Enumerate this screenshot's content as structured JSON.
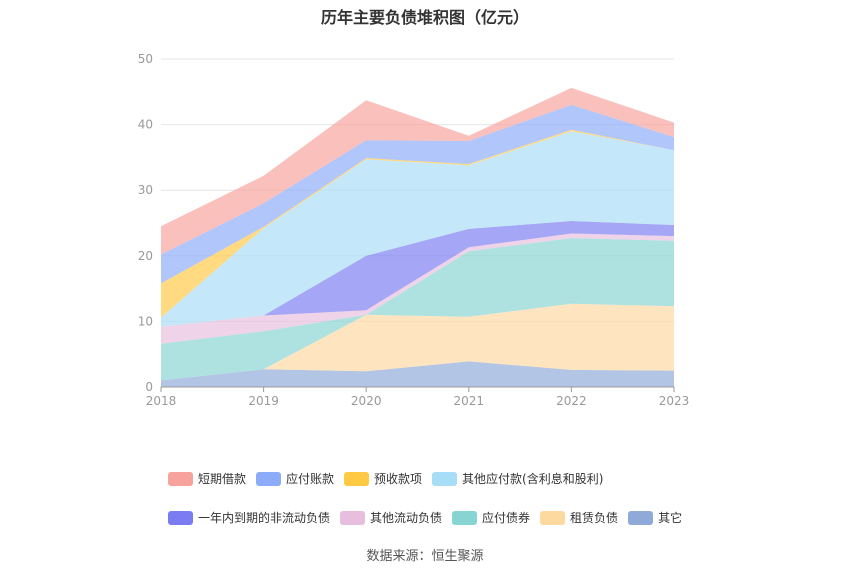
{
  "chart_data": {
    "type": "area",
    "stacked": true,
    "title": "历年主要负债堆积图（亿元）",
    "x": [
      "2018",
      "2019",
      "2020",
      "2021",
      "2022",
      "2023"
    ],
    "ylim": [
      0,
      50
    ],
    "yticks": [
      0,
      10,
      20,
      30,
      40,
      50
    ],
    "grid": true,
    "legend_position": "bottom",
    "series": [
      {
        "name": "其它",
        "color": "#8fa9d8",
        "values": [
          1.0,
          2.7,
          2.4,
          3.9,
          2.6,
          2.5
        ]
      },
      {
        "name": "租赁负债",
        "color": "#fdd9a0",
        "values": [
          0.0,
          0.0,
          8.6,
          6.8,
          10.1,
          9.8
        ]
      },
      {
        "name": "应付债券",
        "color": "#88d4d3",
        "values": [
          5.6,
          5.8,
          0.0,
          10.0,
          10.0,
          10.0
        ]
      },
      {
        "name": "其他流动负债",
        "color": "#e8bedf",
        "values": [
          2.6,
          2.4,
          0.7,
          0.6,
          0.7,
          0.7
        ]
      },
      {
        "name": "一年内到期的非流动负债",
        "color": "#7c7cf2",
        "values": [
          0.0,
          0.0,
          8.3,
          2.8,
          1.9,
          1.7
        ]
      },
      {
        "name": "其他应付款(含利息和股利)",
        "color": "#a8ddf7",
        "values": [
          1.4,
          13.3,
          14.7,
          9.7,
          13.7,
          11.4
        ]
      },
      {
        "name": "预收款项",
        "color": "#ffc944",
        "values": [
          5.2,
          0.2,
          0.2,
          0.2,
          0.2,
          0.0
        ]
      },
      {
        "name": "应付账款",
        "color": "#8cabf9",
        "values": [
          4.4,
          3.6,
          2.7,
          3.5,
          3.8,
          2.0
        ]
      },
      {
        "name": "短期借款",
        "color": "#f7a29c",
        "values": [
          4.3,
          4.2,
          6.1,
          0.8,
          2.6,
          2.2
        ]
      }
    ]
  },
  "legend_order": [
    "短期借款",
    "应付账款",
    "预收款项",
    "其他应付款(含利息和股利)",
    "一年内到期的非流动负债",
    "其他流动负债",
    "应付债券",
    "租赁负债",
    "其它"
  ],
  "source": "数据来源：恒生聚源"
}
